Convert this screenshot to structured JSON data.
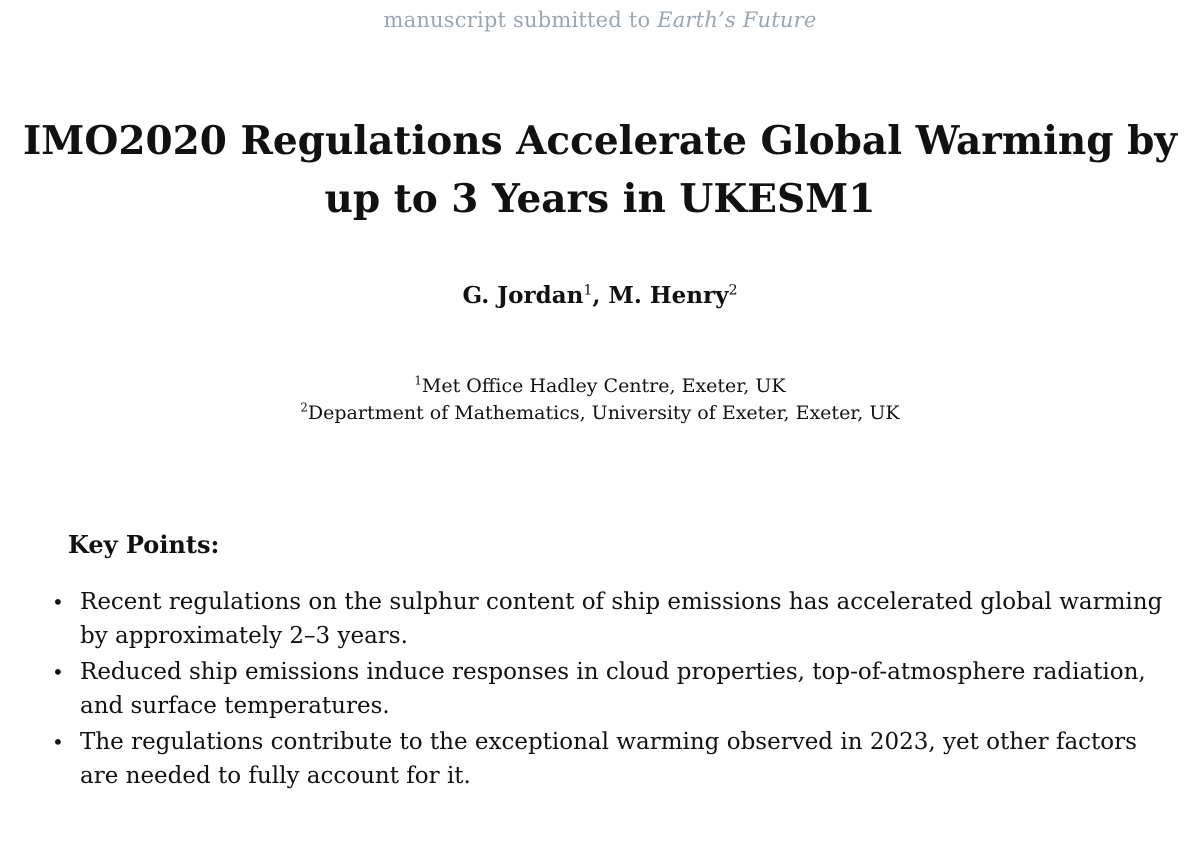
{
  "header": {
    "prefix": "manuscript submitted to ",
    "journal": "Earth’s Future"
  },
  "title": {
    "line1": "IMO2020 Regulations Accelerate Global Warming by",
    "line2": "up to 3 Years in UKESM1"
  },
  "authors": [
    {
      "name": "G. Jordan",
      "affil": "1"
    },
    {
      "name": "M. Henry",
      "affil": "2"
    }
  ],
  "author_separator": ", ",
  "affiliations": [
    {
      "num": "1",
      "text": "Met Office Hadley Centre, Exeter, UK"
    },
    {
      "num": "2",
      "text": "Department of Mathematics, University of Exeter, Exeter, UK"
    }
  ],
  "key_points": {
    "heading": "Key Points:",
    "bullet": "•",
    "items": [
      "Recent regulations on the sulphur content of ship emissions has accelerated global warming by approximately 2–3 years.",
      "Reduced ship emissions induce responses in cloud properties, top-of-atmosphere radiation, and surface temperatures.",
      "The regulations contribute to the exceptional warming observed in 2023, yet other factors are needed to fully account for it."
    ]
  }
}
